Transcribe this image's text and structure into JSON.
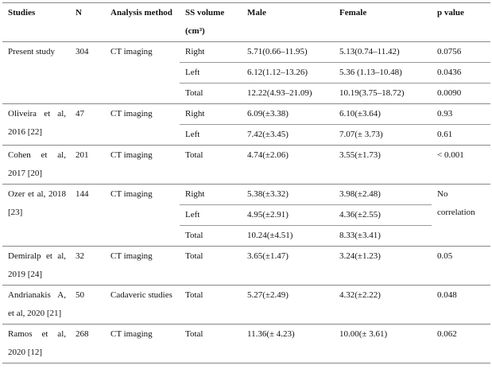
{
  "table": {
    "header": [
      "Studies",
      "N",
      "Analysis method",
      "SS volume (cm³)",
      "Male",
      "Female",
      "p value"
    ],
    "groups": [
      {
        "study": "Present study",
        "n": "304",
        "method": "CT imaging",
        "rows": [
          {
            "side": "Right",
            "male": "5.71(0.66–11.95)",
            "female": "5.13(0.74–11.42)",
            "p": "0.0756"
          },
          {
            "side": "Left",
            "male": "6.12(1.12–13.26)",
            "female": "5.36 (1.13–10.48)",
            "p": "0.0436"
          },
          {
            "side": "Total",
            "male": "12.22(4.93–21.09)",
            "female": "10.19(3.75–18.72)",
            "p": "0.0090"
          }
        ]
      },
      {
        "study": "Oliveira et al, 2016 [22]",
        "n": "47",
        "method": "CT imaging",
        "rows": [
          {
            "side": "Right",
            "male": "6.09(±3.38)",
            "female": "6.10(±3.64)",
            "p": "0.93"
          },
          {
            "side": "Left",
            "male": "7.42(±3.45)",
            "female": "7.07(± 3.73)",
            "p": "0.61"
          }
        ]
      },
      {
        "study": "Cohen et al, 2017 [20]",
        "n": "201",
        "method": "CT imaging",
        "rows": [
          {
            "side": "Total",
            "male": "4.74(±2.06)",
            "female": "3.55(±1.73)",
            "p": "< 0.001"
          }
        ]
      },
      {
        "study": "Ozer et al, 2018 [23]",
        "n": "144",
        "method": "CT imaging",
        "p": "No correlation",
        "rows": [
          {
            "side": "Right",
            "male": "5.38(±3.32)",
            "female": "3.98(±2.48)"
          },
          {
            "side": "Left",
            "male": "4.95(±2.91)",
            "female": "4.36(±2.55)"
          },
          {
            "side": "Total",
            "male": "10.24(±4.51)",
            "female": "8.33(±3.41)"
          }
        ]
      },
      {
        "study": "Demiralp et al, 2019 [24]",
        "n": "32",
        "method": "CT imaging",
        "rows": [
          {
            "side": "Total",
            "male": "3.65(±1.47)",
            "female": "3.24(±1.23)",
            "p": "0.05"
          }
        ]
      },
      {
        "study": "Andrianakis A, et al, 2020 [21]",
        "n": "50",
        "method": "Cadaveric studies",
        "rows": [
          {
            "side": "Total",
            "male": "5.27(±2.49)",
            "female": "4.32(±2.22)",
            "p": "0.048"
          }
        ]
      },
      {
        "study": "Ramos et al, 2020 [12]",
        "n": "268",
        "method": "CT imaging",
        "rows": [
          {
            "side": "Total",
            "male": "11.36(± 4.23)",
            "female": "10.00(± 3.61)",
            "p": "0.062"
          }
        ]
      }
    ]
  }
}
